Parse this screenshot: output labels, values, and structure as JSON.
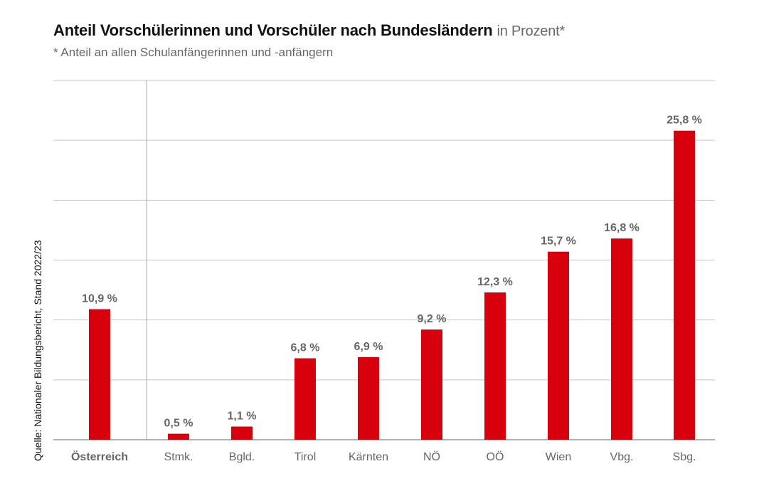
{
  "chart_data": {
    "type": "bar",
    "title": "Anteil Vorschülerinnen und Vorschüler nach Bundesländern",
    "title_unit": "in Prozent*",
    "subtitle": "* Anteil an allen Schulanfängerinnen und -anfängern",
    "source": "Quelle: Nationaler Bildungsbericht, Stand 2022/23",
    "categories": [
      "Österreich",
      "Stmk.",
      "Bgld.",
      "Tirol",
      "Kärnten",
      "NÖ",
      "OÖ",
      "Wien",
      "Vbg.",
      "Sbg."
    ],
    "values": [
      10.9,
      0.5,
      1.1,
      6.8,
      6.9,
      9.2,
      12.3,
      15.7,
      16.8,
      25.8
    ],
    "labels": [
      "10,9 %",
      "0,5 %",
      "1,1 %",
      "6,8 %",
      "6,9 %",
      "9,2 %",
      "12,3 %",
      "15,7 %",
      "16,8 %",
      "25,8 %"
    ],
    "ylim": [
      0,
      30
    ],
    "grid_step": 5,
    "grid": true,
    "xlabel": "",
    "ylabel": "",
    "bar_color": "#d9000d"
  }
}
